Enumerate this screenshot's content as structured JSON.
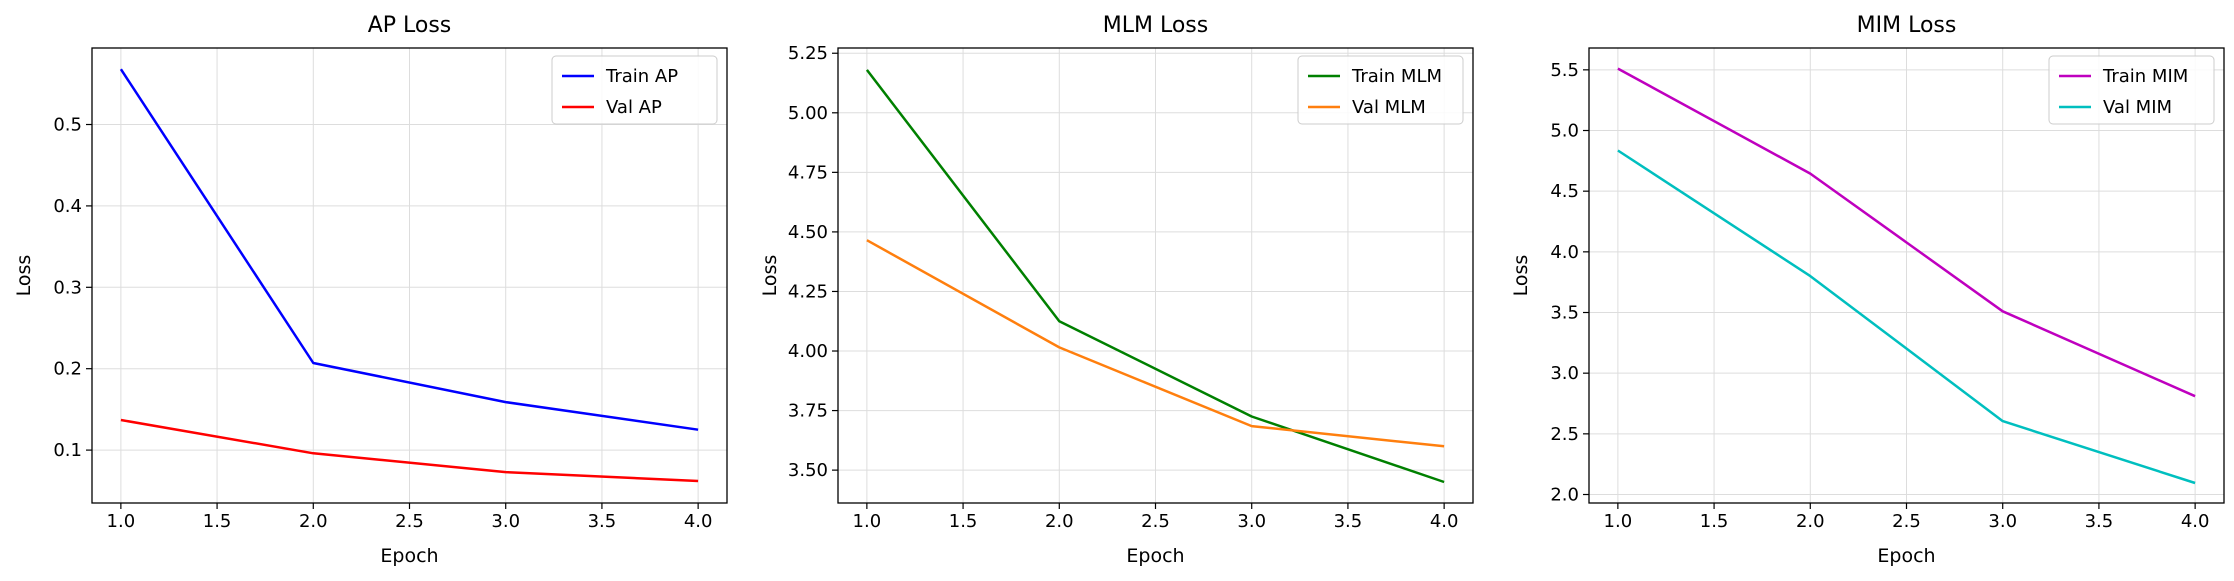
{
  "chart_data": [
    {
      "type": "line",
      "title": "AP Loss",
      "xlabel": "Epoch",
      "ylabel": "Loss",
      "x": [
        1.0,
        2.0,
        3.0,
        4.0
      ],
      "xlim": [
        0.85,
        4.15
      ],
      "ylim": [
        0.035,
        0.594
      ],
      "xticks": [
        1.0,
        1.5,
        2.0,
        2.5,
        3.0,
        3.5,
        4.0
      ],
      "xtick_labels": [
        "1.0",
        "1.5",
        "2.0",
        "2.5",
        "3.0",
        "3.5",
        "4.0"
      ],
      "yticks": [
        0.1,
        0.2,
        0.3,
        0.4,
        0.5
      ],
      "ytick_labels": [
        "0.1",
        "0.2",
        "0.3",
        "0.4",
        "0.5"
      ],
      "grid": true,
      "legend": "top-right",
      "series": [
        {
          "name": "Train AP",
          "color": "#0000ff",
          "values": [
            0.568,
            0.207,
            0.159,
            0.125
          ]
        },
        {
          "name": "Val AP",
          "color": "#ff0000",
          "values": [
            0.137,
            0.096,
            0.073,
            0.062
          ]
        }
      ]
    },
    {
      "type": "line",
      "title": "MLM Loss",
      "xlabel": "Epoch",
      "ylabel": "Loss",
      "x": [
        1.0,
        2.0,
        3.0,
        4.0
      ],
      "xlim": [
        0.85,
        4.15
      ],
      "ylim": [
        3.362,
        5.272
      ],
      "xticks": [
        1.0,
        1.5,
        2.0,
        2.5,
        3.0,
        3.5,
        4.0
      ],
      "xtick_labels": [
        "1.0",
        "1.5",
        "2.0",
        "2.5",
        "3.0",
        "3.5",
        "4.0"
      ],
      "yticks": [
        3.5,
        3.75,
        4.0,
        4.25,
        4.5,
        4.75,
        5.0,
        5.25
      ],
      "ytick_labels": [
        "3.50",
        "3.75",
        "4.00",
        "4.25",
        "4.50",
        "4.75",
        "5.00",
        "5.25"
      ],
      "grid": true,
      "legend": "top-right",
      "series": [
        {
          "name": "Train MLM",
          "color": "#008000",
          "values": [
            5.18,
            4.125,
            3.725,
            3.45
          ]
        },
        {
          "name": "Val MLM",
          "color": "#ff7f0e",
          "values": [
            4.465,
            4.015,
            3.685,
            3.6
          ]
        }
      ]
    },
    {
      "type": "line",
      "title": "MIM Loss",
      "xlabel": "Epoch",
      "ylabel": "Loss",
      "x": [
        1.0,
        2.0,
        3.0,
        4.0
      ],
      "xlim": [
        0.85,
        4.15
      ],
      "ylim": [
        1.93,
        5.68
      ],
      "xticks": [
        1.0,
        1.5,
        2.0,
        2.5,
        3.0,
        3.5,
        4.0
      ],
      "xtick_labels": [
        "1.0",
        "1.5",
        "2.0",
        "2.5",
        "3.0",
        "3.5",
        "4.0"
      ],
      "yticks": [
        2.0,
        2.5,
        3.0,
        3.5,
        4.0,
        4.5,
        5.0,
        5.5
      ],
      "ytick_labels": [
        "2.0",
        "2.5",
        "3.0",
        "3.5",
        "4.0",
        "4.5",
        "5.0",
        "5.5"
      ],
      "grid": true,
      "legend": "top-right",
      "series": [
        {
          "name": "Train MIM",
          "color": "#bf00bf",
          "values": [
            5.51,
            4.645,
            3.51,
            2.81
          ]
        },
        {
          "name": "Val MIM",
          "color": "#00bfbf",
          "values": [
            4.835,
            3.8,
            2.605,
            2.095
          ]
        }
      ]
    }
  ]
}
